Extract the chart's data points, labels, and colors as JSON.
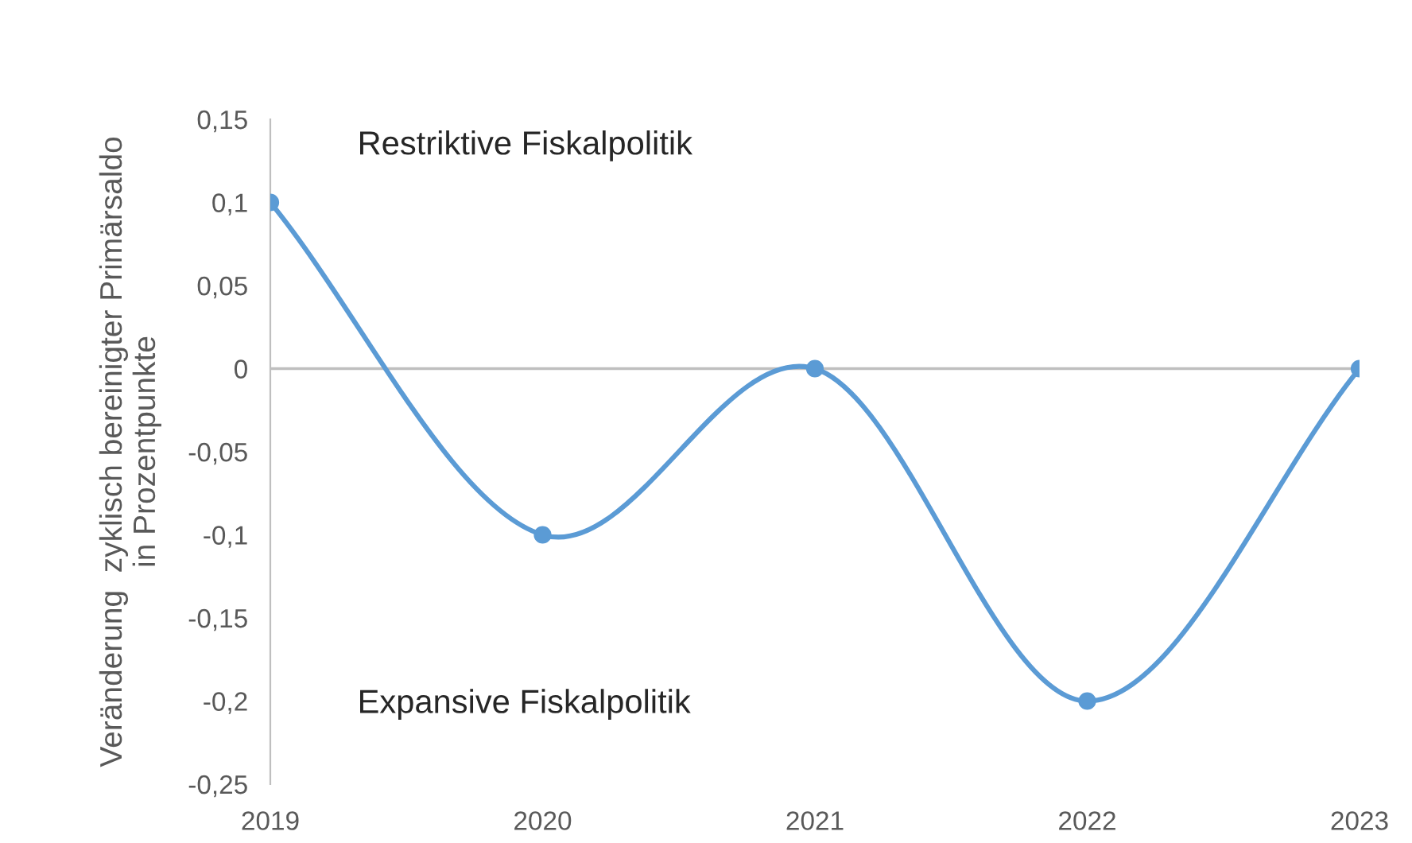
{
  "chart_data": {
    "type": "line",
    "ylabel": "Veränderung  zyklisch bereinigter Primärsaldo\nin Prozentpunkte",
    "x": [
      2019,
      2020,
      2021,
      2022,
      2023
    ],
    "series": [
      {
        "color": "#5b9bd5",
        "values": [
          0.1,
          -0.1,
          0,
          -0.2,
          0
        ]
      }
    ],
    "xlim": [
      2019,
      2023
    ],
    "xticks": [
      2019,
      2020,
      2021,
      2022,
      2023
    ],
    "ylim": [
      -0.25,
      0.15
    ],
    "yticks": [
      {
        "value": -0.25,
        "label": "-0,25"
      },
      {
        "value": -0.2,
        "label": "-0,2"
      },
      {
        "value": -0.15,
        "label": "-0,15"
      },
      {
        "value": -0.1,
        "label": "-0,1"
      },
      {
        "value": -0.05,
        "label": "-0,05"
      },
      {
        "value": 0,
        "label": "0"
      },
      {
        "value": 0.05,
        "label": "0,05"
      },
      {
        "value": 0.1,
        "label": "0,1"
      },
      {
        "value": 0.15,
        "label": "0,15"
      }
    ],
    "ref_lines": [
      {
        "axis": "y",
        "value": 0,
        "color": "#bfbfbf"
      }
    ],
    "annotations": [
      "Restriktive Fiskalpolitik",
      "Expansive Fiskalpolitik"
    ],
    "marker": "circle",
    "line_style": "solid",
    "grid": false,
    "legend": false
  }
}
